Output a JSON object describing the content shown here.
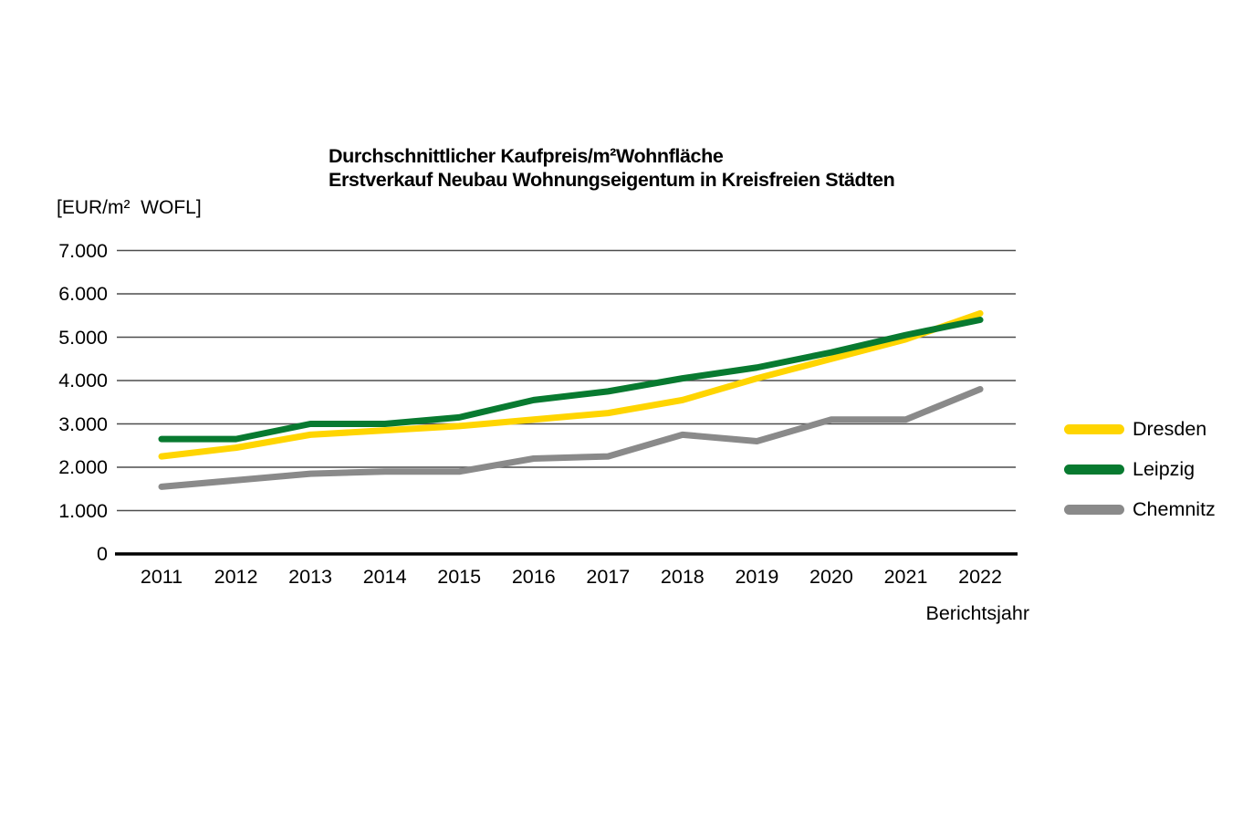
{
  "page": {
    "background_color": "#ffffff",
    "text_color": "#000000"
  },
  "chart_data": {
    "type": "line",
    "title_line1": "Durchschnittlicher Kaufpreis/m²Wohnfläche",
    "title_line2": "Erstverkauf Neubau Wohnungseigentum in Kreisfreien Städten",
    "y_unit_label": "[EUR/m²  WOFL]",
    "xlabel": "Berichtsjahr",
    "ylabel": "",
    "categories": [
      "2011",
      "2012",
      "2013",
      "2014",
      "2015",
      "2016",
      "2017",
      "2018",
      "2019",
      "2020",
      "2021",
      "2022"
    ],
    "y_ticks": [
      {
        "value": 7000,
        "label": "7.000"
      },
      {
        "value": 6000,
        "label": "6.000"
      },
      {
        "value": 5000,
        "label": "5.000"
      },
      {
        "value": 4000,
        "label": "4.000"
      },
      {
        "value": 3000,
        "label": "3.000"
      },
      {
        "value": 2000,
        "label": "2.000"
      },
      {
        "value": 1000,
        "label": "1.000"
      },
      {
        "value": 0,
        "label": "0"
      }
    ],
    "ylim": [
      0,
      7000
    ],
    "grid": true,
    "grid_color": "#4d4d4d",
    "axis_color": "#000000",
    "legend_position": "right",
    "series": [
      {
        "name": "Dresden",
        "color": "#FFD500",
        "values": [
          2250,
          2450,
          2750,
          2850,
          2950,
          3100,
          3250,
          3550,
          4050,
          4500,
          4950,
          5550
        ]
      },
      {
        "name": "Leipzig",
        "color": "#087A30",
        "values": [
          2650,
          2650,
          3000,
          3000,
          3150,
          3550,
          3750,
          4050,
          4300,
          4650,
          5050,
          5400
        ]
      },
      {
        "name": "Chemnitz",
        "color": "#8A8A8A",
        "values": [
          1550,
          1700,
          1850,
          1900,
          1900,
          2200,
          2250,
          2750,
          2600,
          3100,
          3100,
          3800
        ]
      }
    ],
    "draw_order": [
      2,
      0,
      1
    ]
  }
}
